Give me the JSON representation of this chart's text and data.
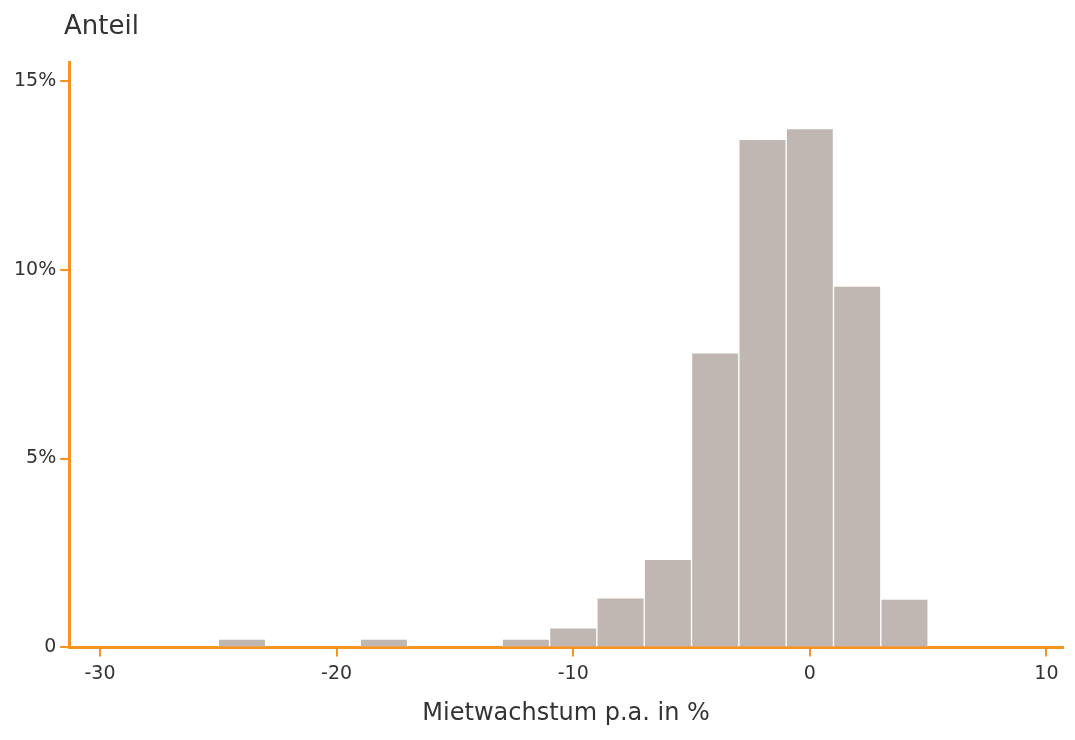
{
  "chart_data": {
    "type": "histogram",
    "xlabel": "Mietwachstum p.a. in %",
    "ylabel": "Anteil",
    "bins": [
      -25,
      -23,
      -21,
      -19,
      -17,
      -15,
      -13,
      -11,
      -9,
      -7,
      -5,
      -3,
      -1,
      1,
      3,
      5
    ],
    "values": [
      0.22,
      0,
      0,
      0.22,
      0,
      0,
      0.22,
      0.52,
      1.31,
      2.33,
      7.8,
      13.45,
      13.74,
      9.57,
      1.28
    ],
    "color": "#c0b7b2",
    "xlim": [
      -31.3,
      10.7
    ],
    "xticks": [
      -30,
      -20,
      -10,
      0,
      10
    ],
    "ylim": [
      0,
      15.5
    ],
    "yticks": [
      {
        "value": 0,
        "label": "0"
      },
      {
        "value": 5,
        "label": "5%"
      },
      {
        "value": 10,
        "label": "10%"
      },
      {
        "value": 15,
        "label": "15%"
      }
    ],
    "grid": false,
    "legend": false
  }
}
